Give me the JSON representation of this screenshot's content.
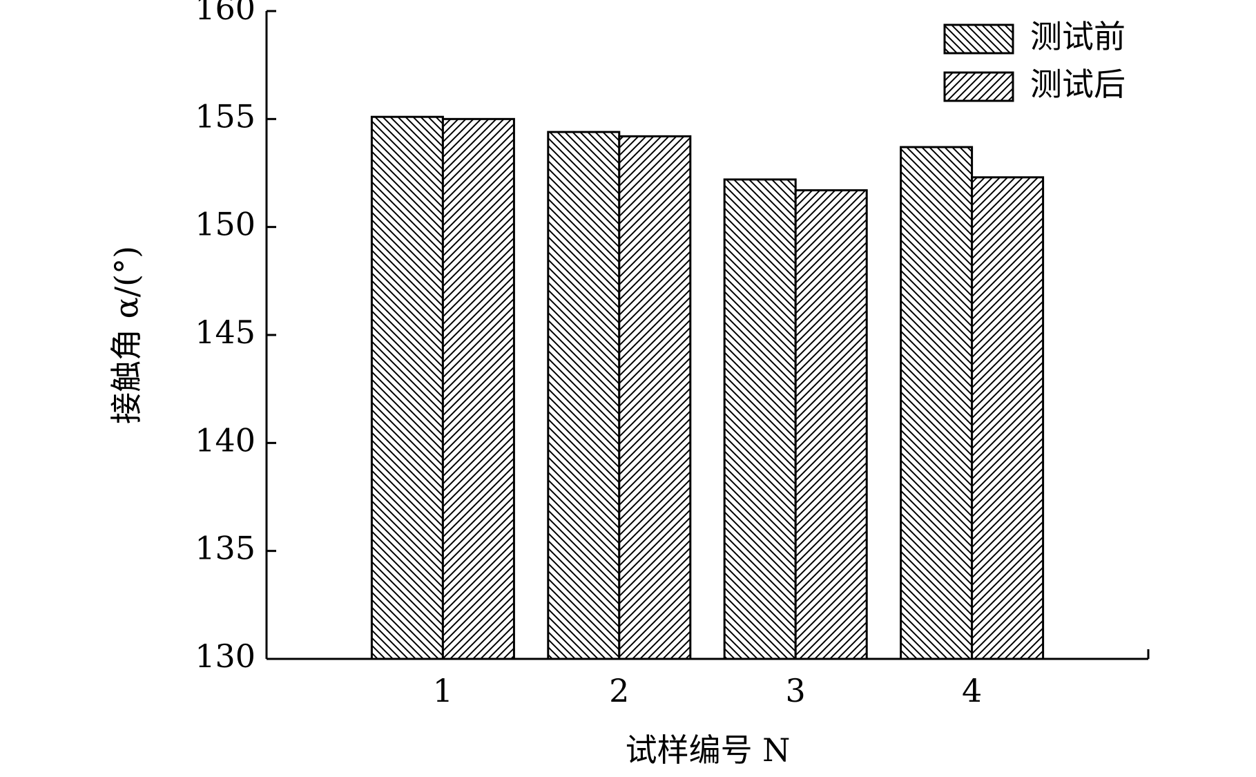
{
  "chart_data": {
    "type": "bar",
    "x_label": "试样编号 N",
    "y_label": "接触角 α/(°)",
    "categories": [
      "1",
      "2",
      "3",
      "4"
    ],
    "series": [
      {
        "name": "测试前",
        "color": "#000000",
        "hatch": "backslash",
        "values": [
          155.1,
          154.4,
          152.2,
          153.7
        ]
      },
      {
        "name": "测试后",
        "color": "#000000",
        "hatch": "slash",
        "values": [
          155.0,
          154.2,
          151.7,
          152.3
        ]
      }
    ],
    "ylim": [
      130,
      160
    ],
    "yticks": [
      130,
      135,
      140,
      145,
      150,
      155,
      160
    ],
    "grid": false,
    "legend": "upper right"
  }
}
